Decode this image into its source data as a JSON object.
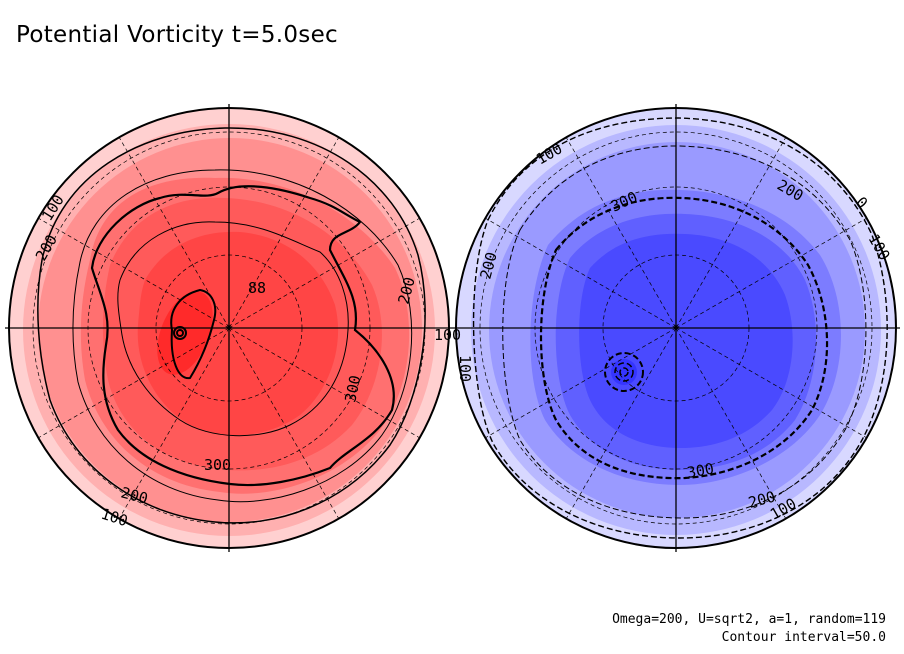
{
  "title": "Potential Vorticity t=5.0sec",
  "params_text": "Omega=200, U=sqrt2, a=1, random=119",
  "interval_text": "Contour interval=50.0",
  "colors": {
    "red_levels": [
      "#ffd0d0",
      "#ffb0b0",
      "#ff9090",
      "#ff7070",
      "#ff5a5a",
      "#ff4545",
      "#ff2a2a"
    ],
    "blue_levels": [
      "#d8d8ff",
      "#b8b8ff",
      "#9a9aff",
      "#7c7cff",
      "#6060ff",
      "#4a4aff",
      "#3535ff"
    ]
  },
  "chart_data": [
    {
      "type": "heatmap",
      "name": "northern-hemisphere",
      "projection": "orthographic polar",
      "field": "potential vorticity",
      "sign": "positive",
      "contour_interval": 50.0,
      "contour_labels": [
        {
          "text": "100",
          "pos": "upper-left"
        },
        {
          "text": "200",
          "pos": "upper-left-inner"
        },
        {
          "text": "200",
          "pos": "right"
        },
        {
          "text": "100",
          "pos": "right-edge"
        },
        {
          "text": "300",
          "pos": "lower-right"
        },
        {
          "text": "300",
          "pos": "bottom"
        },
        {
          "text": "200",
          "pos": "bottom"
        },
        {
          "text": "100",
          "pos": "bottom-edge"
        },
        {
          "text": "88",
          "pos": "center-right"
        }
      ],
      "extremum_marker": "off-center maximum, west of pole"
    },
    {
      "type": "heatmap",
      "name": "southern-hemisphere",
      "projection": "orthographic polar",
      "field": "potential vorticity",
      "sign": "negative (dashed contours)",
      "contour_interval": 50.0,
      "contour_labels": [
        {
          "text": "100",
          "pos": "upper-left"
        },
        {
          "text": "300",
          "pos": "upper"
        },
        {
          "text": "200",
          "pos": "upper-right"
        },
        {
          "text": "0",
          "pos": "upper-right-edge"
        },
        {
          "text": "100",
          "pos": "right-edge"
        },
        {
          "text": "200",
          "pos": "left"
        },
        {
          "text": "100",
          "pos": "left-edge"
        },
        {
          "text": "300",
          "pos": "lower"
        },
        {
          "text": "200",
          "pos": "lower-right"
        },
        {
          "text": "100",
          "pos": "bottom-edge"
        }
      ],
      "extremum_marker": "off-center minimum, southwest of pole"
    }
  ]
}
